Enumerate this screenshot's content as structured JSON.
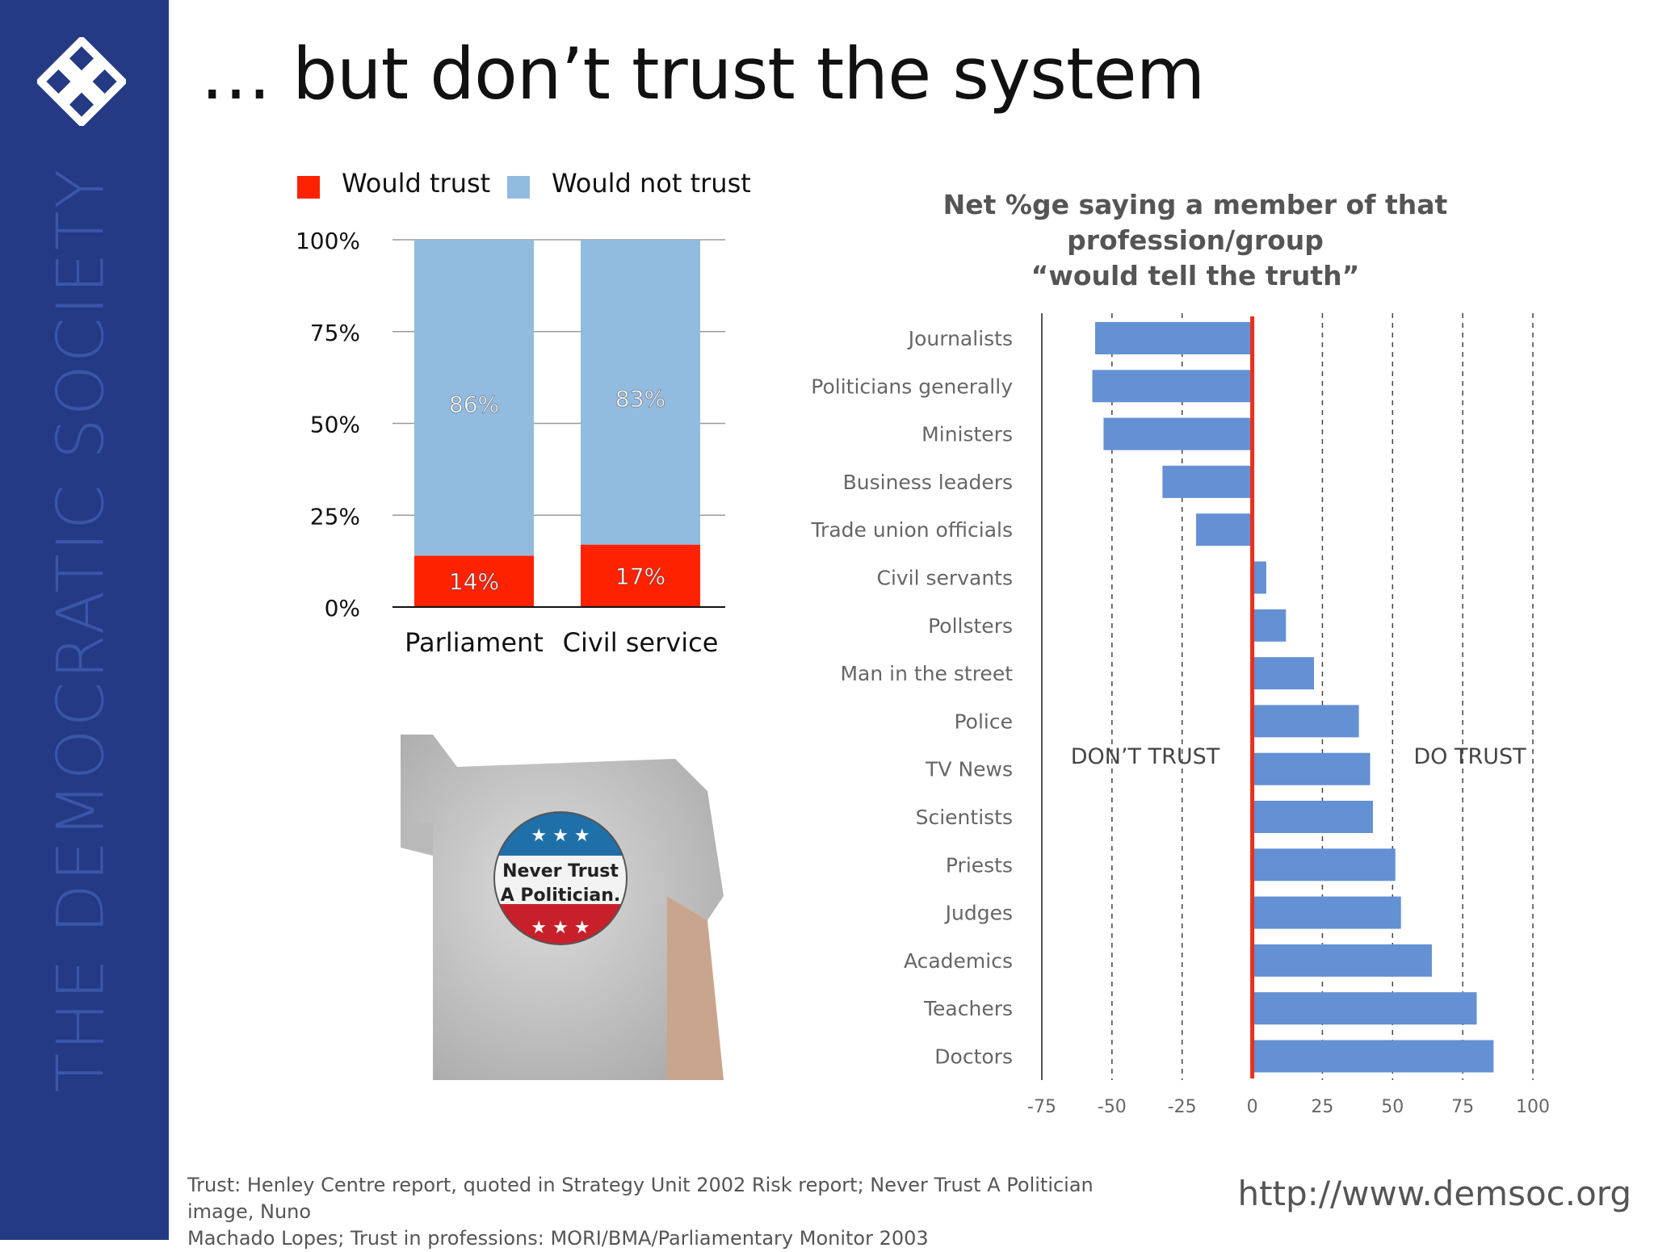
{
  "org_name": "THE DEMOCRATIC SOCIETY",
  "slide_title": "… but don’t trust the system",
  "colors": {
    "sidebar": "#243a85",
    "would_trust": "#ff2200",
    "would_not_trust": "#92bbe0",
    "profession_bar": "#6490d4",
    "zero_line": "#e8301c"
  },
  "chart_data": [
    {
      "type": "bar",
      "stacked": true,
      "categories": [
        "Parliament",
        "Civil service"
      ],
      "series": [
        {
          "name": "Would trust",
          "values": [
            14,
            17
          ],
          "labels": [
            "14%",
            "17%"
          ]
        },
        {
          "name": "Would not trust",
          "values": [
            86,
            83
          ],
          "labels": [
            "86%",
            "83%"
          ]
        }
      ],
      "ylim": [
        0,
        100
      ],
      "yticks": [
        0,
        25,
        50,
        75,
        100
      ],
      "ytick_labels": [
        "0%",
        "25%",
        "50%",
        "75%",
        "100%"
      ],
      "legend_position": "top",
      "grid": true
    },
    {
      "type": "bar",
      "orientation": "horizontal",
      "title_lines": [
        "Net %ge saying a member of that profession/group",
        "“would tell the truth”"
      ],
      "categories": [
        "Journalists",
        "Politicians generally",
        "Ministers",
        "Business leaders",
        "Trade union officials",
        "Civil servants",
        "Pollsters",
        "Man in the street",
        "Police",
        "TV News",
        "Scientists",
        "Priests",
        "Judges",
        "Academics",
        "Teachers",
        "Doctors"
      ],
      "values": [
        -56,
        -57,
        -53,
        -32,
        -20,
        5,
        12,
        22,
        38,
        42,
        43,
        51,
        53,
        64,
        80,
        86
      ],
      "xlim": [
        -75,
        100
      ],
      "xticks": [
        -75,
        -50,
        -25,
        0,
        25,
        50,
        75,
        100
      ],
      "xtick_labels": [
        "-75",
        "-50",
        "-25",
        "0",
        "25",
        "50",
        "75",
        "100"
      ],
      "annotations": {
        "negative": "DON’T TRUST",
        "positive": "DO TRUST"
      },
      "grid": "vertical dashed"
    }
  ],
  "photo": {
    "icon": "t-shirt-photo",
    "badge_lines": [
      "Never Trust",
      "A Politician."
    ]
  },
  "footer": {
    "source_line1": "Trust: Henley Centre report, quoted in Strategy Unit 2002 Risk report; Never Trust A Politician image, Nuno",
    "source_line2": "Machado Lopes; Trust in professions: MORI/BMA/Parliamentary Monitor 2003",
    "url": "http://www.demsoc.org"
  }
}
